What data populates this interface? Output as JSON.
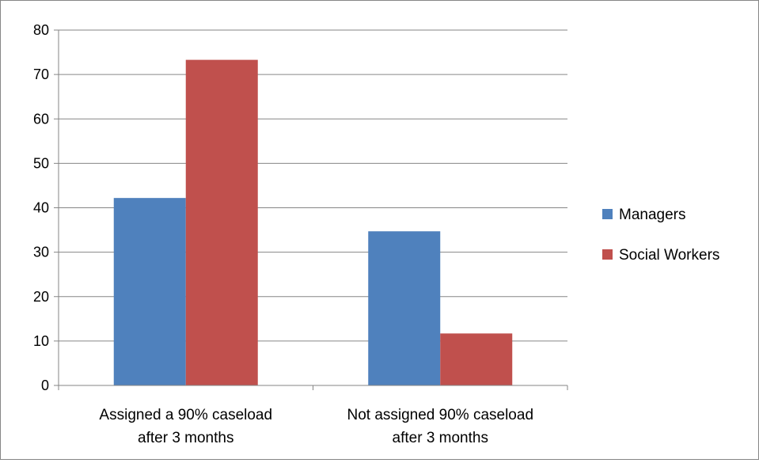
{
  "chart_data": {
    "type": "bar",
    "title": "",
    "xlabel": "",
    "ylabel": "",
    "ylim": [
      0,
      80
    ],
    "yticks": [
      0,
      10,
      20,
      30,
      40,
      50,
      60,
      70,
      80
    ],
    "grid": true,
    "legend_position": "right",
    "categories": [
      [
        "Assigned a 90% caseload",
        "after 3 months"
      ],
      [
        "Not assigned 90% caseload",
        "after 3 months"
      ]
    ],
    "series": [
      {
        "name": "Managers",
        "color": "#4F81BD",
        "values": [
          42.2,
          34.7
        ]
      },
      {
        "name": "Social Workers",
        "color": "#C0504D",
        "values": [
          73.3,
          11.7
        ]
      }
    ]
  }
}
